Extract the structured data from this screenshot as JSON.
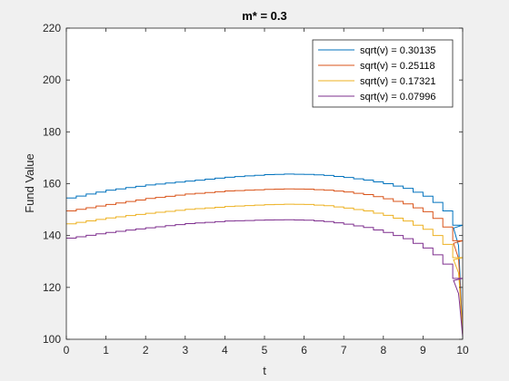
{
  "chart_data": {
    "type": "line",
    "title": "m* = 0.3",
    "xlabel": "t",
    "ylabel": "Fund Value",
    "xlim": [
      0,
      10
    ],
    "ylim": [
      100,
      220
    ],
    "xticks": [
      "0",
      "1",
      "2",
      "3",
      "4",
      "5",
      "6",
      "7",
      "8",
      "9",
      "10"
    ],
    "yticks": [
      "100",
      "120",
      "140",
      "160",
      "180",
      "200",
      "220"
    ],
    "grid": false,
    "legend_position": "top-right",
    "steps": 40,
    "series": [
      {
        "name": "sqrt(v) = 0.30135",
        "color": "#0072BD",
        "x": [
          0,
          1,
          2,
          3,
          4,
          5,
          5.5,
          6,
          6.5,
          7,
          7.5,
          8,
          8.5,
          9,
          9.25,
          9.5,
          9.75,
          9.9,
          10
        ],
        "y": [
          154.5,
          157.5,
          159.5,
          161,
          162.5,
          163.5,
          163.7,
          163.6,
          163.2,
          162.4,
          161.4,
          160,
          158.2,
          155.2,
          152.8,
          149.5,
          144,
          136,
          102
        ]
      },
      {
        "name": "sqrt(v) = 0.25118",
        "color": "#D95319",
        "x": [
          0,
          1,
          2,
          3,
          4,
          5,
          5.5,
          6,
          6.5,
          7,
          7.5,
          8,
          8.5,
          9,
          9.25,
          9.5,
          9.75,
          9.9,
          10
        ],
        "y": [
          149.5,
          152,
          154.3,
          156,
          157.2,
          157.8,
          158,
          157.9,
          157.5,
          156.8,
          155.8,
          154.2,
          152.2,
          149.2,
          146.6,
          143.3,
          138,
          131,
          102
        ]
      },
      {
        "name": "sqrt(v) = 0.17321",
        "color": "#EDB120",
        "x": [
          0,
          1,
          2,
          3,
          4,
          5,
          5.5,
          6,
          6.5,
          7,
          7.5,
          8,
          8.5,
          9,
          9.25,
          9.5,
          9.75,
          9.9,
          10
        ],
        "y": [
          144.5,
          146.8,
          148.6,
          150.1,
          151.2,
          151.9,
          152.1,
          152,
          151.5,
          150.6,
          149.5,
          147.8,
          145.6,
          142.4,
          140,
          136.6,
          131.5,
          125.5,
          102
        ]
      },
      {
        "name": "sqrt(v) = 0.07996",
        "color": "#7E2F8E",
        "x": [
          0,
          1,
          2,
          3,
          4,
          5,
          5.5,
          6,
          6.5,
          7,
          7.5,
          8,
          8.5,
          9,
          9.25,
          9.5,
          9.75,
          9.9,
          10
        ],
        "y": [
          139,
          141.2,
          143,
          144.6,
          145.6,
          146,
          146.1,
          145.9,
          145.4,
          144.4,
          143.1,
          141.2,
          138.8,
          135.2,
          132.6,
          129,
          123.5,
          117.5,
          101
        ]
      }
    ]
  }
}
